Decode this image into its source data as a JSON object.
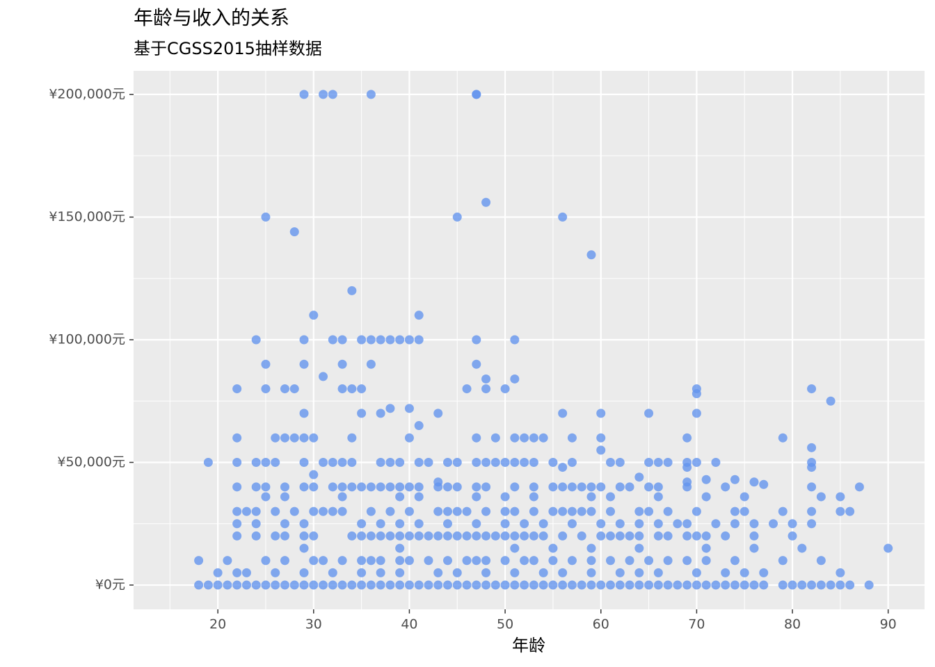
{
  "chart_data": {
    "type": "scatter",
    "title": "年龄与收入的关系",
    "subtitle": "基于CGSS2015抽样数据",
    "xlabel": "年龄",
    "color": "#6495ed",
    "grid": true,
    "xlim": [
      11.2,
      93.8
    ],
    "ylim": [
      -9900,
      209600
    ],
    "xticks": [
      20,
      30,
      40,
      50,
      60,
      70,
      80,
      90
    ],
    "xminor_ticks": [
      15,
      25,
      35,
      45,
      55,
      65,
      75,
      85
    ],
    "yticks": [
      {
        "value": 0,
        "label": "¥0元"
      },
      {
        "value": 50000,
        "label": "¥50,000元"
      },
      {
        "value": 100000,
        "label": "¥100,000元"
      },
      {
        "value": 150000,
        "label": "¥150,000元"
      },
      {
        "value": 200000,
        "label": "¥200,000元"
      }
    ],
    "yminor_ticks": [
      25000,
      75000,
      125000,
      175000
    ],
    "x": [
      29,
      31,
      32,
      36,
      47,
      47,
      25,
      28,
      45,
      48,
      56,
      59,
      34,
      30,
      41,
      24,
      29,
      32,
      33,
      35,
      36,
      37,
      38,
      39,
      40,
      41,
      47,
      51,
      25,
      29,
      33,
      36,
      47,
      31,
      48,
      51,
      22,
      25,
      27,
      28,
      33,
      34,
      35,
      46,
      48,
      50,
      70,
      82,
      70,
      84,
      38,
      40,
      29,
      35,
      37,
      43,
      56,
      60,
      65,
      70,
      41,
      22,
      26,
      27,
      28,
      29,
      30,
      34,
      40,
      47,
      49,
      51,
      52,
      53,
      54,
      57,
      60,
      69,
      79,
      82,
      60,
      19,
      22,
      24,
      25,
      26,
      29,
      31,
      32,
      33,
      34,
      37,
      38,
      39,
      41,
      42,
      44,
      45,
      47,
      48,
      49,
      50,
      51,
      52,
      53,
      55,
      57,
      61,
      62,
      65,
      66,
      67,
      69,
      70,
      72,
      82,
      56,
      69,
      82,
      30,
      64,
      71,
      74,
      43,
      69,
      76,
      77,
      22,
      24,
      25,
      27,
      29,
      30,
      32,
      33,
      34,
      35,
      36,
      37,
      38,
      39,
      40,
      41,
      43,
      44,
      45,
      47,
      48,
      51,
      53,
      55,
      56,
      57,
      58,
      59,
      60,
      62,
      63,
      65,
      66,
      69,
      73,
      82,
      87,
      25,
      27,
      33,
      39,
      41,
      47,
      50,
      53,
      59,
      61,
      66,
      71,
      75,
      83,
      85,
      22,
      23,
      24,
      26,
      28,
      30,
      31,
      32,
      33,
      36,
      38,
      40,
      43,
      44,
      45,
      46,
      48,
      50,
      51,
      53,
      55,
      56,
      57,
      58,
      59,
      61,
      64,
      65,
      67,
      70,
      74,
      75,
      79,
      82,
      85,
      86,
      22,
      24,
      27,
      29,
      35,
      37,
      39,
      41,
      44,
      47,
      50,
      52,
      54,
      57,
      60,
      62,
      64,
      66,
      68,
      69,
      72,
      74,
      76,
      78,
      80,
      82,
      22,
      24,
      26,
      27,
      29,
      30,
      34,
      35,
      36,
      37,
      38,
      39,
      40,
      41,
      42,
      43,
      44,
      45,
      46,
      47,
      48,
      49,
      50,
      51,
      52,
      53,
      54,
      56,
      58,
      60,
      61,
      62,
      63,
      64,
      66,
      67,
      69,
      70,
      71,
      73,
      76,
      80,
      29,
      39,
      51,
      55,
      59,
      64,
      71,
      76,
      81,
      90,
      18,
      21,
      25,
      27,
      30,
      31,
      33,
      35,
      36,
      37,
      39,
      40,
      42,
      44,
      46,
      47,
      48,
      50,
      52,
      53,
      55,
      57,
      59,
      61,
      63,
      65,
      67,
      69,
      71,
      74,
      79,
      83,
      20,
      22,
      23,
      26,
      29,
      32,
      35,
      37,
      39,
      43,
      45,
      48,
      51,
      54,
      56,
      59,
      62,
      64,
      66,
      70,
      73,
      75,
      77,
      85,
      18,
      19,
      20,
      21,
      22,
      23,
      24,
      25,
      26,
      27,
      28,
      29,
      30,
      31,
      32,
      33,
      34,
      35,
      36,
      37,
      38,
      39,
      40,
      41,
      42,
      43,
      44,
      45,
      46,
      47,
      48,
      49,
      50,
      51,
      52,
      53,
      54,
      55,
      56,
      57,
      58,
      59,
      60,
      61,
      62,
      63,
      64,
      65,
      66,
      67,
      68,
      69,
      70,
      71,
      72,
      73,
      74,
      75,
      76,
      77,
      79,
      80,
      81,
      82,
      83,
      84,
      85,
      86,
      88
    ],
    "values": [
      200000,
      200000,
      200000,
      200000,
      200000,
      200000,
      150000,
      144000,
      150000,
      156000,
      150000,
      134600,
      120000,
      110000,
      110000,
      100000,
      100000,
      100000,
      100000,
      100000,
      100000,
      100000,
      100000,
      100000,
      100000,
      100000,
      100000,
      100000,
      90000,
      90000,
      90000,
      90000,
      90000,
      85000,
      84000,
      84000,
      80000,
      80000,
      80000,
      80000,
      80000,
      80000,
      80000,
      80000,
      80000,
      80000,
      80000,
      80000,
      78000,
      75000,
      72000,
      72000,
      70000,
      70000,
      70000,
      70000,
      70000,
      70000,
      70000,
      70000,
      65000,
      60000,
      60000,
      60000,
      60000,
      60000,
      60000,
      60000,
      60000,
      60000,
      60000,
      60000,
      60000,
      60000,
      60000,
      60000,
      60000,
      60000,
      60000,
      56000,
      55000,
      50000,
      50000,
      50000,
      50000,
      50000,
      50000,
      50000,
      50000,
      50000,
      50000,
      50000,
      50000,
      50000,
      50000,
      50000,
      50000,
      50000,
      50000,
      50000,
      50000,
      50000,
      50000,
      50000,
      50000,
      50000,
      50000,
      50000,
      50000,
      50000,
      50000,
      50000,
      50000,
      50000,
      50000,
      50000,
      48000,
      48000,
      48000,
      45000,
      44000,
      43000,
      43000,
      42000,
      42000,
      42000,
      41000,
      40000,
      40000,
      40000,
      40000,
      40000,
      40000,
      40000,
      40000,
      40000,
      40000,
      40000,
      40000,
      40000,
      40000,
      40000,
      40000,
      40000,
      40000,
      40000,
      40000,
      40000,
      40000,
      40000,
      40000,
      40000,
      40000,
      40000,
      40000,
      40000,
      40000,
      40000,
      40000,
      40000,
      40000,
      40000,
      40000,
      40000,
      36000,
      36000,
      36000,
      36000,
      36000,
      36000,
      36000,
      36000,
      36000,
      36000,
      36000,
      36000,
      36000,
      36000,
      36000,
      30000,
      30000,
      30000,
      30000,
      30000,
      30000,
      30000,
      30000,
      30000,
      30000,
      30000,
      30000,
      30000,
      30000,
      30000,
      30000,
      30000,
      30000,
      30000,
      30000,
      30000,
      30000,
      30000,
      30000,
      30000,
      30000,
      30000,
      30000,
      30000,
      30000,
      30000,
      30000,
      30000,
      30000,
      30000,
      30000,
      25000,
      25000,
      25000,
      25000,
      25000,
      25000,
      25000,
      25000,
      25000,
      25000,
      25000,
      25000,
      25000,
      25000,
      25000,
      25000,
      25000,
      25000,
      25000,
      25000,
      25000,
      25000,
      25000,
      25000,
      25000,
      25000,
      20000,
      20000,
      20000,
      20000,
      20000,
      20000,
      20000,
      20000,
      20000,
      20000,
      20000,
      20000,
      20000,
      20000,
      20000,
      20000,
      20000,
      20000,
      20000,
      20000,
      20000,
      20000,
      20000,
      20000,
      20000,
      20000,
      20000,
      20000,
      20000,
      20000,
      20000,
      20000,
      20000,
      20000,
      20000,
      20000,
      20000,
      20000,
      20000,
      20000,
      20000,
      20000,
      15000,
      15000,
      15000,
      15000,
      15000,
      15000,
      15000,
      15000,
      15000,
      15000,
      10000,
      10000,
      10000,
      10000,
      10000,
      10000,
      10000,
      10000,
      10000,
      10000,
      10000,
      10000,
      10000,
      10000,
      10000,
      10000,
      10000,
      10000,
      10000,
      10000,
      10000,
      10000,
      10000,
      10000,
      10000,
      10000,
      10000,
      10000,
      10000,
      10000,
      10000,
      10000,
      5000,
      5000,
      5000,
      5000,
      5000,
      5000,
      5000,
      5000,
      5000,
      5000,
      5000,
      5000,
      5000,
      5000,
      5000,
      5000,
      5000,
      5000,
      5000,
      5000,
      5000,
      5000,
      5000,
      5000,
      0,
      0,
      0,
      0,
      0,
      0,
      0,
      0,
      0,
      0,
      0,
      0,
      0,
      0,
      0,
      0,
      0,
      0,
      0,
      0,
      0,
      0,
      0,
      0,
      0,
      0,
      0,
      0,
      0,
      0,
      0,
      0,
      0,
      0,
      0,
      0,
      0,
      0,
      0,
      0,
      0,
      0,
      0,
      0,
      0,
      0,
      0,
      0,
      0,
      0,
      0,
      0,
      0,
      0,
      0,
      0,
      0,
      0,
      0,
      0,
      0,
      0,
      0,
      0,
      0,
      0,
      0,
      0,
      0
    ]
  }
}
